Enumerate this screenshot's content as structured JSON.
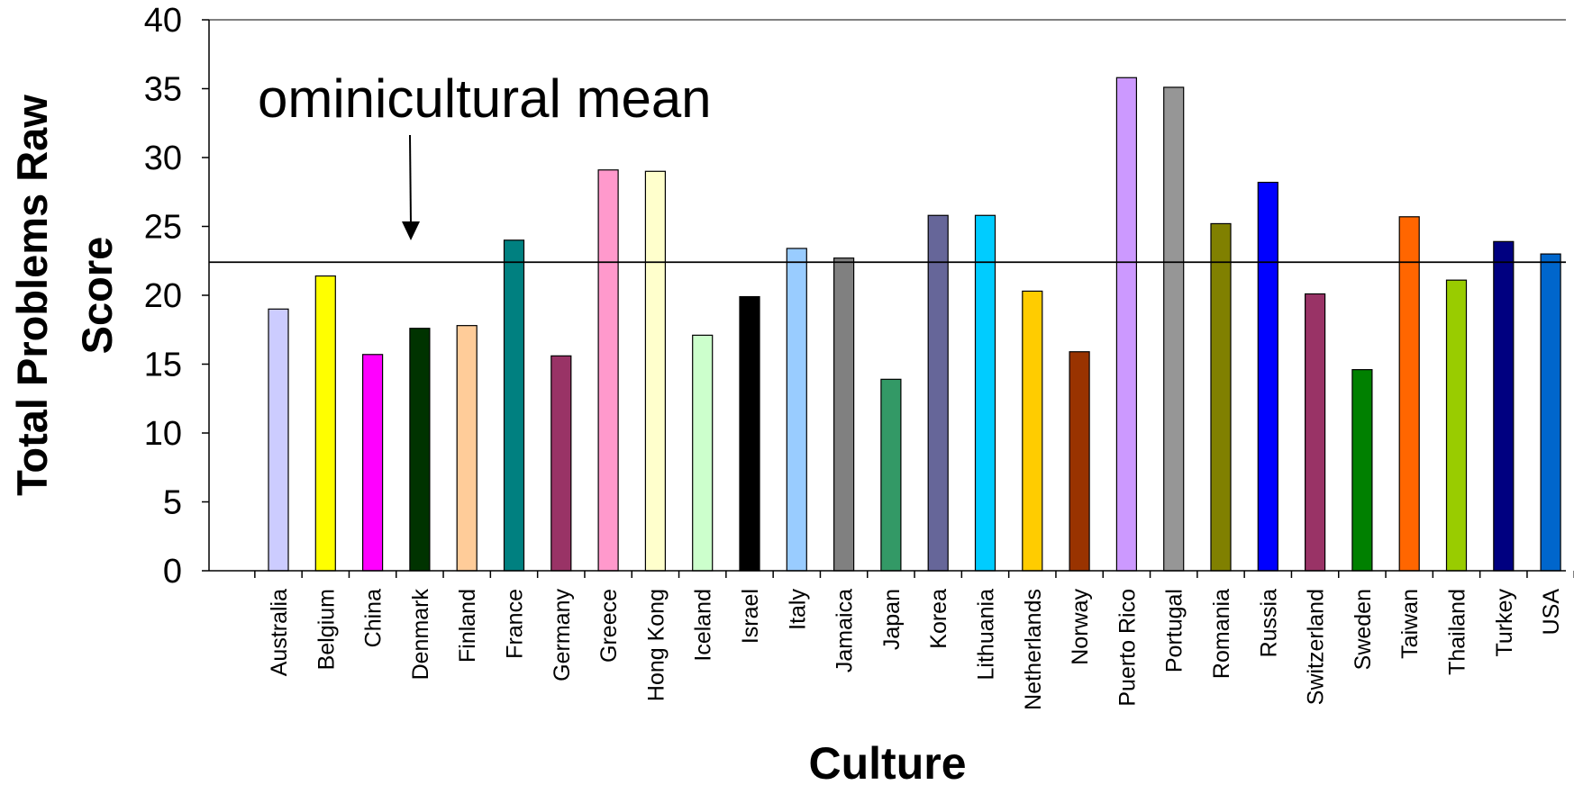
{
  "chart_data": {
    "type": "bar",
    "xlabel": "Culture",
    "ylabel": "Total Problems Raw Score",
    "ylim": [
      0,
      40
    ],
    "yticks": [
      0,
      5,
      10,
      15,
      20,
      25,
      30,
      35,
      40
    ],
    "grid": false,
    "legend": "none",
    "categories": [
      "Australia",
      "Belgium",
      "China",
      "Denmark",
      "Finland",
      "France",
      "Germany",
      "Greece",
      "Hong Kong",
      "Iceland",
      "Israel",
      "Italy",
      "Jamaica",
      "Japan",
      "Korea",
      "Lithuania",
      "Netherlands",
      "Norway",
      "Puerto Rico",
      "Portugal",
      "Romania",
      "Russia",
      "Switzerland",
      "Sweden",
      "Taiwan",
      "Thailand",
      "Turkey",
      "USA"
    ],
    "values": [
      19.0,
      21.4,
      15.7,
      17.6,
      17.8,
      24.0,
      15.6,
      29.1,
      29.0,
      17.1,
      19.9,
      23.4,
      22.7,
      13.9,
      25.8,
      25.8,
      20.3,
      15.9,
      35.8,
      35.1,
      25.2,
      28.2,
      20.1,
      14.6,
      25.7,
      21.1,
      23.9,
      23.0
    ],
    "colors": [
      "#ccccff",
      "#ffff00",
      "#ff00ff",
      "#003300",
      "#ffcc99",
      "#008080",
      "#993366",
      "#ff99cc",
      "#ffffcc",
      "#ccffcc",
      "#000000",
      "#99ccff",
      "#808080",
      "#339966",
      "#666699",
      "#00ccff",
      "#ffcc00",
      "#993300",
      "#cc99ff",
      "#969696",
      "#808000",
      "#0000ff",
      "#993366",
      "#008000",
      "#ff6600",
      "#99cc00",
      "#000080",
      "#0066cc"
    ],
    "reference_line": {
      "value": 22.4,
      "label": "ominicultural mean"
    }
  }
}
